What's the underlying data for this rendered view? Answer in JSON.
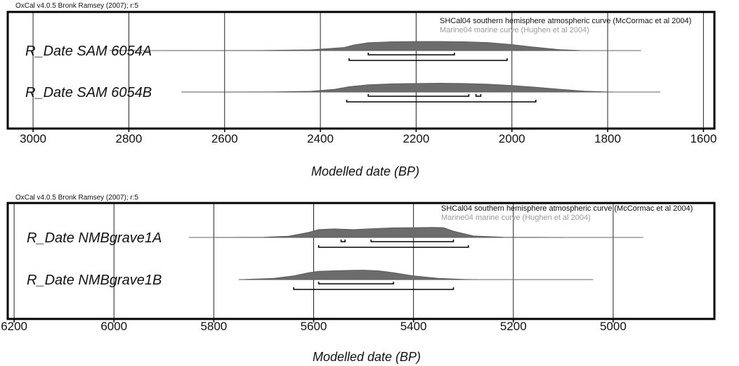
{
  "chart_data": [
    {
      "type": "area",
      "caption": "OxCal v4.0.5 Bronk Ramsey (2007); r:5",
      "curve_labels": [
        "SHCal04 southern hemisphere atmospheric curve (McCormac et al 2004)",
        "Marine04 marine curve (Hughen et al 2004)"
      ],
      "xlabel": "Modelled date (BP)",
      "xlim": [
        3050,
        1580
      ],
      "ticks": [
        "3000",
        "2800",
        "2600",
        "2400",
        "2200",
        "2000",
        "1800",
        "1600"
      ],
      "tick_values": [
        3000,
        2800,
        2600,
        2400,
        2200,
        2000,
        1800,
        1600
      ],
      "grid": true,
      "series": [
        {
          "name": "R_Date SAM 6054A",
          "line_range": [
            2840,
            1730
          ],
          "density_x": [
            2720,
            2520,
            2420,
            2350,
            2330,
            2300,
            2250,
            2200,
            2150,
            2100,
            2050,
            2000,
            1960,
            1900,
            1850
          ],
          "density_y": [
            0.0,
            0.01,
            0.06,
            0.25,
            0.45,
            0.62,
            0.7,
            0.72,
            0.72,
            0.7,
            0.64,
            0.48,
            0.3,
            0.08,
            0.0
          ],
          "ranges_68": [
            [
              2300,
              2120
            ]
          ],
          "ranges_95": [
            [
              2340,
              2010
            ]
          ]
        },
        {
          "name": "R_Date SAM 6054B",
          "line_range": [
            2690,
            1690
          ],
          "density_x": [
            2690,
            2500,
            2420,
            2370,
            2340,
            2300,
            2250,
            2200,
            2150,
            2100,
            2050,
            2000,
            1950,
            1900,
            1850,
            1790
          ],
          "density_y": [
            0.0,
            0.01,
            0.06,
            0.22,
            0.42,
            0.58,
            0.65,
            0.68,
            0.7,
            0.68,
            0.62,
            0.52,
            0.38,
            0.22,
            0.08,
            0.0
          ],
          "ranges_68": [
            [
              2300,
              2090
            ],
            [
              2075,
              2065
            ]
          ],
          "ranges_95": [
            [
              2345,
              1950
            ]
          ]
        }
      ]
    },
    {
      "type": "area",
      "caption": "OxCal v4.0.5 Bronk Ramsey (2007); r:5",
      "curve_labels": [
        "SHCal04 southern hemisphere atmospheric curve (McCormac et al 2004)",
        "Marine04 marine curve (Hughen et al 2004)"
      ],
      "xlabel": "Modelled date (BP)",
      "xlim": [
        6210,
        4800
      ],
      "ticks": [
        "6200",
        "6000",
        "5800",
        "5600",
        "5400",
        "5200",
        "5000"
      ],
      "tick_values": [
        6200,
        6000,
        5800,
        5600,
        5400,
        5200,
        5000
      ],
      "grid": true,
      "series": [
        {
          "name": "R_Date NMBgrave1A",
          "line_range": [
            5850,
            4940
          ],
          "density_x": [
            5800,
            5700,
            5650,
            5610,
            5590,
            5560,
            5520,
            5480,
            5440,
            5400,
            5360,
            5340,
            5320,
            5280,
            5220,
            5100
          ],
          "density_y": [
            0.0,
            0.02,
            0.1,
            0.4,
            0.62,
            0.68,
            0.62,
            0.7,
            0.76,
            0.78,
            0.8,
            0.78,
            0.5,
            0.12,
            0.02,
            0.0
          ],
          "ranges_68": [
            [
              5545,
              5537
            ],
            [
              5485,
              5320
            ]
          ],
          "ranges_95": [
            [
              5590,
              5290
            ]
          ]
        },
        {
          "name": "R_Date NMBgrave1B",
          "line_range": [
            5750,
            5040
          ],
          "density_x": [
            5750,
            5680,
            5640,
            5610,
            5590,
            5560,
            5520,
            5500,
            5470,
            5440,
            5400,
            5350,
            5300,
            5270
          ],
          "density_y": [
            0.0,
            0.1,
            0.3,
            0.55,
            0.66,
            0.7,
            0.74,
            0.75,
            0.7,
            0.55,
            0.3,
            0.1,
            0.02,
            0.0
          ],
          "ranges_68": [
            [
              5590,
              5440
            ]
          ],
          "ranges_95": [
            [
              5640,
              5320
            ]
          ]
        }
      ]
    }
  ]
}
